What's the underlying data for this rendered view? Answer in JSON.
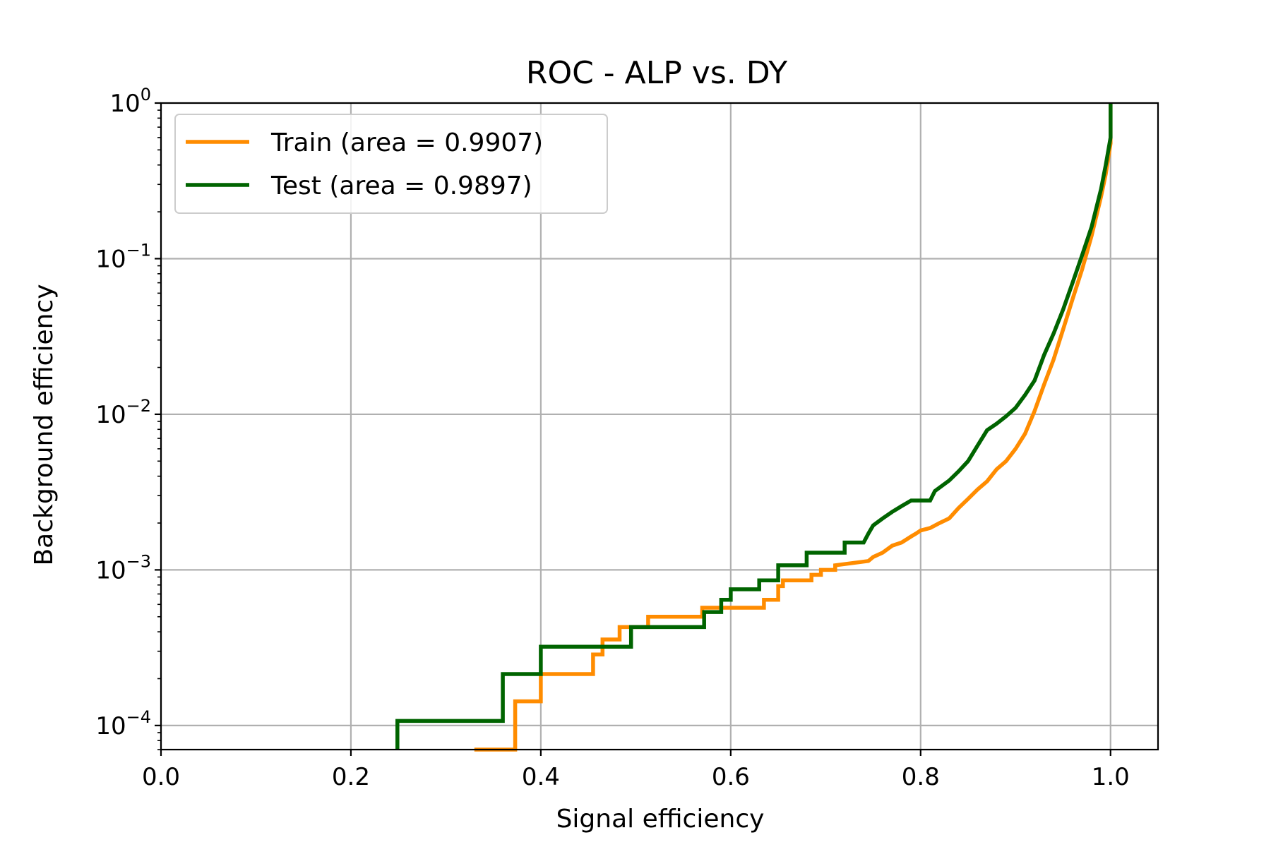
{
  "chart_data": {
    "type": "line",
    "title": "ROC - ALP vs. DY",
    "xlabel": "Signal efficiency",
    "ylabel": "Background efficiency",
    "xscale": "linear",
    "yscale": "log",
    "xlim": [
      0.0,
      1.05
    ],
    "ylim": [
      7e-05,
      1.0
    ],
    "grid": true,
    "legend_position": "upper-left",
    "x_ticks": [
      0.0,
      0.2,
      0.4,
      0.6,
      0.8,
      1.0
    ],
    "x_tick_labels": [
      "0.0",
      "0.2",
      "0.4",
      "0.6",
      "0.8",
      "1.0"
    ],
    "y_ticks": [
      0.0001,
      0.001,
      0.01,
      0.1,
      1
    ],
    "y_tick_labels": [
      {
        "base": "10",
        "exp": "−4"
      },
      {
        "base": "10",
        "exp": "−3"
      },
      {
        "base": "10",
        "exp": "−2"
      },
      {
        "base": "10",
        "exp": "−1"
      },
      {
        "base": "10",
        "exp": "0"
      }
    ],
    "series": [
      {
        "name": "Train (area = 0.9907)",
        "color": "#ff8c00",
        "points": [
          [
            0.33,
            7e-05
          ],
          [
            0.373,
            7e-05
          ],
          [
            0.373,
            0.000143
          ],
          [
            0.4,
            0.000143
          ],
          [
            0.4,
            0.000214
          ],
          [
            0.455,
            0.000214
          ],
          [
            0.455,
            0.000286
          ],
          [
            0.465,
            0.000286
          ],
          [
            0.465,
            0.000357
          ],
          [
            0.483,
            0.000357
          ],
          [
            0.483,
            0.000429
          ],
          [
            0.513,
            0.000429
          ],
          [
            0.513,
            0.0005
          ],
          [
            0.57,
            0.0005
          ],
          [
            0.57,
            0.000571
          ],
          [
            0.635,
            0.000571
          ],
          [
            0.635,
            0.000643
          ],
          [
            0.65,
            0.000643
          ],
          [
            0.65,
            0.000786
          ],
          [
            0.655,
            0.000786
          ],
          [
            0.655,
            0.000857
          ],
          [
            0.685,
            0.000857
          ],
          [
            0.685,
            0.000929
          ],
          [
            0.695,
            0.000929
          ],
          [
            0.695,
            0.001
          ],
          [
            0.71,
            0.001
          ],
          [
            0.71,
            0.00107
          ],
          [
            0.745,
            0.00114
          ],
          [
            0.75,
            0.00121
          ],
          [
            0.76,
            0.00129
          ],
          [
            0.77,
            0.00143
          ],
          [
            0.78,
            0.0015
          ],
          [
            0.79,
            0.00164
          ],
          [
            0.795,
            0.00171
          ],
          [
            0.8,
            0.00179
          ],
          [
            0.81,
            0.00186
          ],
          [
            0.82,
            0.002
          ],
          [
            0.83,
            0.00214
          ],
          [
            0.84,
            0.0025
          ],
          [
            0.85,
            0.00286
          ],
          [
            0.86,
            0.00329
          ],
          [
            0.87,
            0.00371
          ],
          [
            0.88,
            0.00443
          ],
          [
            0.89,
            0.005
          ],
          [
            0.9,
            0.006
          ],
          [
            0.91,
            0.0075
          ],
          [
            0.92,
            0.0105
          ],
          [
            0.93,
            0.0155
          ],
          [
            0.94,
            0.0225
          ],
          [
            0.95,
            0.035
          ],
          [
            0.96,
            0.055
          ],
          [
            0.97,
            0.085
          ],
          [
            0.98,
            0.14
          ],
          [
            0.99,
            0.25
          ],
          [
            0.995,
            0.35
          ],
          [
            1.0,
            0.55
          ],
          [
            1.0,
            1.0
          ]
        ]
      },
      {
        "name": "Test (area = 0.9897)",
        "color": "#006400",
        "points": [
          [
            0.249,
            7e-05
          ],
          [
            0.249,
            0.000107
          ],
          [
            0.36,
            0.000107
          ],
          [
            0.36,
            0.000214
          ],
          [
            0.4,
            0.000214
          ],
          [
            0.4,
            0.000321
          ],
          [
            0.495,
            0.000321
          ],
          [
            0.495,
            0.000429
          ],
          [
            0.572,
            0.000429
          ],
          [
            0.572,
            0.000536
          ],
          [
            0.59,
            0.000536
          ],
          [
            0.59,
            0.000643
          ],
          [
            0.6,
            0.000643
          ],
          [
            0.6,
            0.00075
          ],
          [
            0.63,
            0.00075
          ],
          [
            0.63,
            0.000857
          ],
          [
            0.65,
            0.000857
          ],
          [
            0.65,
            0.00107
          ],
          [
            0.68,
            0.00107
          ],
          [
            0.68,
            0.00129
          ],
          [
            0.72,
            0.00129
          ],
          [
            0.72,
            0.0015
          ],
          [
            0.74,
            0.0015
          ],
          [
            0.745,
            0.00171
          ],
          [
            0.75,
            0.00193
          ],
          [
            0.76,
            0.00214
          ],
          [
            0.77,
            0.00236
          ],
          [
            0.78,
            0.00257
          ],
          [
            0.79,
            0.00279
          ],
          [
            0.81,
            0.00279
          ],
          [
            0.815,
            0.00321
          ],
          [
            0.83,
            0.00375
          ],
          [
            0.84,
            0.0043
          ],
          [
            0.85,
            0.005
          ],
          [
            0.86,
            0.0063
          ],
          [
            0.87,
            0.0079
          ],
          [
            0.88,
            0.0087
          ],
          [
            0.89,
            0.0097
          ],
          [
            0.9,
            0.011
          ],
          [
            0.91,
            0.0133
          ],
          [
            0.92,
            0.0165
          ],
          [
            0.93,
            0.024
          ],
          [
            0.94,
            0.033
          ],
          [
            0.95,
            0.047
          ],
          [
            0.96,
            0.07
          ],
          [
            0.97,
            0.105
          ],
          [
            0.98,
            0.16
          ],
          [
            0.99,
            0.28
          ],
          [
            0.995,
            0.4
          ],
          [
            1.0,
            0.6
          ],
          [
            1.0,
            1.0
          ]
        ]
      }
    ]
  }
}
